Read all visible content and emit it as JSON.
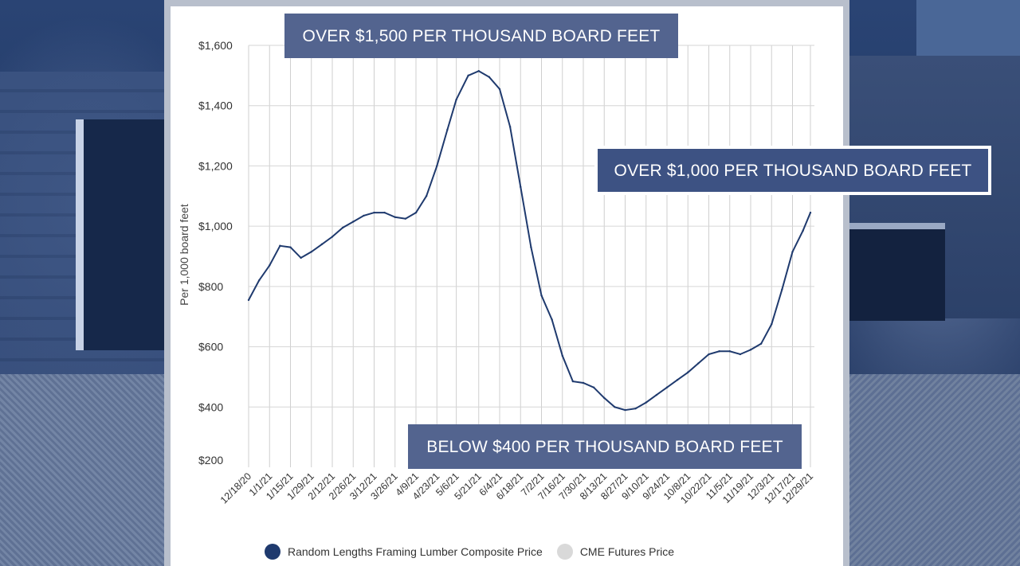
{
  "chart_data": {
    "type": "line",
    "ylabel": "Per 1,000 board feet",
    "ylim": [
      200,
      1600
    ],
    "yticks": [
      200,
      400,
      600,
      800,
      1000,
      1200,
      1400,
      1600
    ],
    "ytick_labels": [
      "$200",
      "$400",
      "$600",
      "$800",
      "$1,000",
      "$1,200",
      "$1,400",
      "$1,600"
    ],
    "x_tick_labels": [
      "12/18/20",
      "1/1/21",
      "1/15/21",
      "1/29/21",
      "2/12/21",
      "2/26/21",
      "3/12/21",
      "3/26/21",
      "4/9/21",
      "4/23/21",
      "5/6/21",
      "5/21/21",
      "6/4/21",
      "6/18/21",
      "7/2/21",
      "7/16/21",
      "7/30/21",
      "8/13/21",
      "8/27/21",
      "9/10/21",
      "9/24/21",
      "10/8/21",
      "10/22/21",
      "11/5/21",
      "11/19/21",
      "12/3/21",
      "12/17/21",
      "12/29/21"
    ],
    "grid": true,
    "series": [
      {
        "name": "Random Lengths Framing Lumber Composite Price",
        "color": "#1f3a6e",
        "x": [
          "12/18/20",
          "12/25/20",
          "1/1/21",
          "1/8/21",
          "1/15/21",
          "1/22/21",
          "1/29/21",
          "2/5/21",
          "2/12/21",
          "2/19/21",
          "2/26/21",
          "3/5/21",
          "3/12/21",
          "3/19/21",
          "3/26/21",
          "4/2/21",
          "4/9/21",
          "4/16/21",
          "4/23/21",
          "4/30/21",
          "5/6/21",
          "5/14/21",
          "5/21/21",
          "5/28/21",
          "6/4/21",
          "6/11/21",
          "6/18/21",
          "6/25/21",
          "7/2/21",
          "7/9/21",
          "7/16/21",
          "7/23/21",
          "7/30/21",
          "8/6/21",
          "8/13/21",
          "8/20/21",
          "8/27/21",
          "9/3/21",
          "9/10/21",
          "9/17/21",
          "9/24/21",
          "10/1/21",
          "10/8/21",
          "10/15/21",
          "10/22/21",
          "10/29/21",
          "11/5/21",
          "11/12/21",
          "11/19/21",
          "11/26/21",
          "12/3/21",
          "12/10/21",
          "12/17/21",
          "12/24/21",
          "12/29/21"
        ],
        "values": [
          755,
          820,
          870,
          935,
          930,
          895,
          915,
          940,
          965,
          995,
          1015,
          1035,
          1045,
          1045,
          1030,
          1025,
          1045,
          1100,
          1200,
          1320,
          1420,
          1500,
          1515,
          1495,
          1455,
          1330,
          1130,
          930,
          770,
          690,
          570,
          485,
          480,
          465,
          430,
          400,
          390,
          395,
          415,
          440,
          465,
          490,
          515,
          545,
          575,
          585,
          585,
          575,
          590,
          610,
          675,
          790,
          915,
          985,
          1045
        ]
      }
    ],
    "legend": [
      {
        "label": "Random Lengths Framing Lumber Composite Price",
        "color": "#1f3a6e"
      },
      {
        "label": "CME Futures Price",
        "color": "#d9d9d9"
      }
    ],
    "legend_placement": "bottom",
    "annotations": [
      "OVER $1,500 PER THOUSAND BOARD FEET",
      "OVER $1,000 PER THOUSAND BOARD FEET",
      "BELOW $400 PER THOUSAND BOARD FEET"
    ]
  }
}
